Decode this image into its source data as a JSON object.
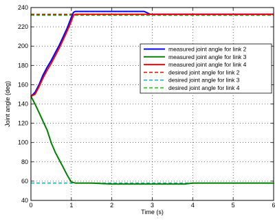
{
  "chart_data": {
    "type": "line",
    "xlabel": "Time (s)",
    "ylabel": "Joint angle (deg)",
    "xlim": [
      0,
      6
    ],
    "ylim": [
      40,
      240
    ],
    "xticks": [
      0,
      1,
      2,
      3,
      4,
      5,
      6
    ],
    "yticks": [
      40,
      60,
      80,
      100,
      120,
      140,
      160,
      180,
      200,
      220,
      240
    ],
    "grid": true,
    "legend_position": "right",
    "series": [
      {
        "name": "measured joint angle for link 2",
        "color": "#0000ff",
        "style": "solid",
        "points": [
          [
            0,
            148
          ],
          [
            0.1,
            152
          ],
          [
            0.2,
            160
          ],
          [
            0.3,
            170
          ],
          [
            0.4,
            178
          ],
          [
            0.5,
            185
          ],
          [
            0.6,
            193
          ],
          [
            0.7,
            201
          ],
          [
            0.8,
            210
          ],
          [
            0.9,
            219
          ],
          [
            1.0,
            230
          ],
          [
            1.05,
            235
          ],
          [
            1.1,
            236
          ],
          [
            1.3,
            236
          ],
          [
            2.0,
            236
          ],
          [
            2.8,
            236
          ],
          [
            2.95,
            233
          ],
          [
            3.0,
            233
          ],
          [
            4.0,
            233
          ],
          [
            5.0,
            233
          ],
          [
            6.0,
            233
          ]
        ]
      },
      {
        "name": "measured joint angle for link 3",
        "color": "#008000",
        "style": "solid",
        "points": [
          [
            0,
            148
          ],
          [
            0.1,
            140
          ],
          [
            0.2,
            131
          ],
          [
            0.3,
            122
          ],
          [
            0.4,
            113
          ],
          [
            0.5,
            100
          ],
          [
            0.6,
            90
          ],
          [
            0.7,
            82
          ],
          [
            0.8,
            74
          ],
          [
            0.9,
            66
          ],
          [
            1.0,
            59
          ],
          [
            1.1,
            58
          ],
          [
            1.5,
            58
          ],
          [
            2.0,
            57
          ],
          [
            3.0,
            57
          ],
          [
            3.8,
            57
          ],
          [
            4.0,
            58
          ],
          [
            5.0,
            58
          ],
          [
            6.0,
            58
          ]
        ]
      },
      {
        "name": "measured joint angle for link 4",
        "color": "#ff0000",
        "style": "solid",
        "points": [
          [
            0,
            148
          ],
          [
            0.1,
            150
          ],
          [
            0.2,
            158
          ],
          [
            0.3,
            167
          ],
          [
            0.4,
            175
          ],
          [
            0.5,
            182
          ],
          [
            0.6,
            190
          ],
          [
            0.7,
            198
          ],
          [
            0.8,
            207
          ],
          [
            0.9,
            216
          ],
          [
            1.0,
            226
          ],
          [
            1.05,
            232
          ],
          [
            1.1,
            233
          ],
          [
            2.0,
            233
          ],
          [
            3.0,
            233
          ],
          [
            4.0,
            233
          ],
          [
            5.0,
            233
          ],
          [
            6.0,
            233
          ]
        ]
      },
      {
        "name": "desired joint angle for link 2",
        "color": "#ff0000",
        "style": "dashed",
        "points": [
          [
            0,
            233
          ],
          [
            6,
            233
          ]
        ]
      },
      {
        "name": "desired joint angle for link 3",
        "color": "#00bfbf",
        "style": "dashed",
        "points": [
          [
            0,
            58
          ],
          [
            6,
            58
          ]
        ]
      },
      {
        "name": "desired joint angle for link 4",
        "color": "#00cc00",
        "style": "dashed",
        "points": [
          [
            0,
            232
          ],
          [
            6,
            232
          ]
        ]
      }
    ]
  }
}
